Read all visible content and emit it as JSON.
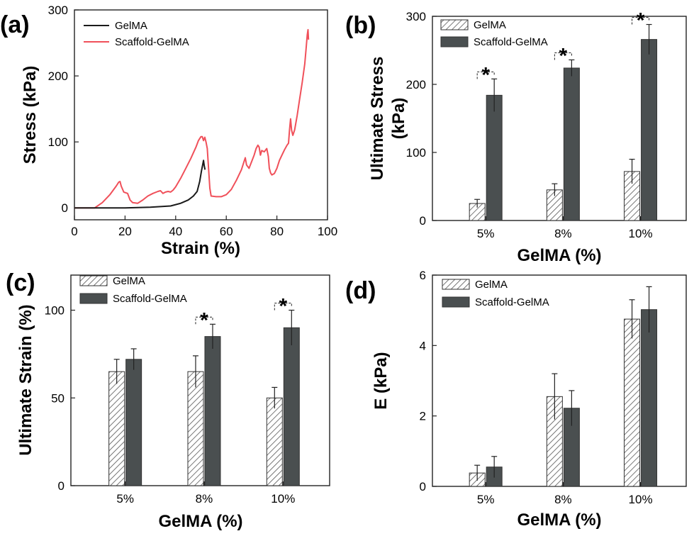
{
  "figure": {
    "panel_labels": [
      "(a)",
      "(b)",
      "(c)",
      "(d)"
    ]
  },
  "colors": {
    "gelma_line": "#1a1a1a",
    "scaffold_line": "#f0505a",
    "scaffold_bar": "#4a4f50",
    "hatch": "#555555"
  },
  "chart_data": [
    {
      "type": "line",
      "panel": "(a)",
      "title": "",
      "xlabel": "Strain (%)",
      "ylabel": "Stress (kPa)",
      "xlim": [
        0,
        100
      ],
      "ylim": [
        -18,
        300
      ],
      "xticks": [
        0,
        20,
        40,
        60,
        80,
        100
      ],
      "yticks": [
        0,
        100,
        200,
        300
      ],
      "legend_position": "top-left",
      "series": [
        {
          "name": "GelMA",
          "points": [
            [
              0,
              0
            ],
            [
              10,
              0
            ],
            [
              20,
              0
            ],
            [
              30,
              1
            ],
            [
              38,
              3
            ],
            [
              42,
              7
            ],
            [
              45,
              12
            ],
            [
              47,
              18
            ],
            [
              48.5,
              25
            ],
            [
              49.5,
              40
            ],
            [
              50.2,
              56
            ],
            [
              50.8,
              68
            ],
            [
              51,
              72
            ],
            [
              51.3,
              64
            ],
            [
              51.6,
              58
            ]
          ]
        },
        {
          "name": "Scaffold-GelMA",
          "points": [
            [
              0,
              0
            ],
            [
              8,
              0
            ],
            [
              11,
              8
            ],
            [
              14,
              20
            ],
            [
              16.5,
              33
            ],
            [
              17.5,
              39
            ],
            [
              18,
              40
            ],
            [
              18.5,
              33
            ],
            [
              19.5,
              24
            ],
            [
              21,
              22
            ],
            [
              22,
              12
            ],
            [
              23,
              8
            ],
            [
              25,
              7
            ],
            [
              27,
              12
            ],
            [
              29,
              18
            ],
            [
              31,
              22
            ],
            [
              33,
              25
            ],
            [
              34,
              26
            ],
            [
              35,
              22
            ],
            [
              36,
              24
            ],
            [
              37,
              25
            ],
            [
              38,
              24
            ],
            [
              39,
              27
            ],
            [
              40,
              32
            ],
            [
              42,
              45
            ],
            [
              44,
              60
            ],
            [
              46,
              75
            ],
            [
              48,
              92
            ],
            [
              49,
              102
            ],
            [
              50,
              108
            ],
            [
              50.5,
              108
            ],
            [
              51,
              102
            ],
            [
              51.5,
              107
            ],
            [
              52,
              100
            ],
            [
              52.5,
              90
            ],
            [
              53,
              60
            ],
            [
              53.5,
              30
            ],
            [
              54,
              18
            ],
            [
              56,
              17
            ],
            [
              58,
              17
            ],
            [
              60,
              20
            ],
            [
              62,
              28
            ],
            [
              64,
              42
            ],
            [
              66,
              58
            ],
            [
              67,
              70
            ],
            [
              67.5,
              76
            ],
            [
              68,
              65
            ],
            [
              69,
              60
            ],
            [
              70,
              70
            ],
            [
              71,
              80
            ],
            [
              71.8,
              90
            ],
            [
              72.5,
              95
            ],
            [
              73,
              92
            ],
            [
              73.5,
              80
            ],
            [
              74,
              87
            ],
            [
              75,
              85
            ],
            [
              76,
              90
            ],
            [
              76.6,
              78
            ],
            [
              77,
              60
            ],
            [
              77.5,
              53
            ],
            [
              78,
              50
            ],
            [
              79,
              52
            ],
            [
              80,
              60
            ],
            [
              81,
              72
            ],
            [
              82,
              80
            ],
            [
              83,
              88
            ],
            [
              84,
              95
            ],
            [
              84.6,
              98
            ],
            [
              85,
              118
            ],
            [
              85.4,
              135
            ],
            [
              85.8,
              118
            ],
            [
              86.3,
              110
            ],
            [
              87,
              118
            ],
            [
              88,
              140
            ],
            [
              89,
              165
            ],
            [
              90,
              190
            ],
            [
              91,
              218
            ],
            [
              91.5,
              240
            ],
            [
              92,
              262
            ],
            [
              92.3,
              270
            ],
            [
              92.5,
              255
            ]
          ]
        }
      ]
    },
    {
      "type": "bar",
      "panel": "(b)",
      "title": "",
      "xlabel": "GelMA (%)",
      "ylabel": "Ultimate Stress (kPa)",
      "ylim": [
        0,
        300
      ],
      "yticks": [
        0,
        100,
        200,
        300
      ],
      "categories": [
        "5%",
        "8%",
        "10%"
      ],
      "legend_position": "top-left",
      "series": [
        {
          "name": "GelMA",
          "values": [
            25,
            45,
            72
          ],
          "errors": [
            6,
            9,
            18
          ]
        },
        {
          "name": "Scaffold-GelMA",
          "values": [
            184,
            224,
            266
          ],
          "errors": [
            24,
            12,
            22
          ]
        }
      ],
      "significance": [
        "*",
        "*",
        "*"
      ]
    },
    {
      "type": "bar",
      "panel": "(c)",
      "title": "",
      "xlabel": "GelMA (%)",
      "ylabel": "Ultimate Strain (%)",
      "ylim": [
        0,
        120
      ],
      "yticks": [
        0,
        50,
        100
      ],
      "categories": [
        "5%",
        "8%",
        "10%"
      ],
      "legend_position": "top-left",
      "series": [
        {
          "name": "GelMA",
          "values": [
            65,
            65,
            50
          ],
          "errors": [
            7,
            9,
            6
          ]
        },
        {
          "name": "Scaffold-GelMA",
          "values": [
            72,
            85,
            90
          ],
          "errors": [
            6,
            7,
            10
          ]
        }
      ],
      "significance": [
        "",
        "*",
        "*"
      ]
    },
    {
      "type": "bar",
      "panel": "(d)",
      "title": "",
      "xlabel": "GelMA (%)",
      "ylabel": "E (kPa)",
      "ylim": [
        0,
        6
      ],
      "yticks": [
        0,
        2,
        4,
        6
      ],
      "categories": [
        "5%",
        "8%",
        "10%"
      ],
      "legend_position": "top-left",
      "series": [
        {
          "name": "GelMA",
          "values": [
            0.38,
            2.55,
            4.75
          ],
          "errors": [
            0.22,
            0.65,
            0.55
          ]
        },
        {
          "name": "Scaffold-GelMA",
          "values": [
            0.55,
            2.22,
            5.02
          ],
          "errors": [
            0.3,
            0.5,
            0.65
          ]
        }
      ],
      "significance": [
        "",
        "",
        ""
      ]
    }
  ]
}
